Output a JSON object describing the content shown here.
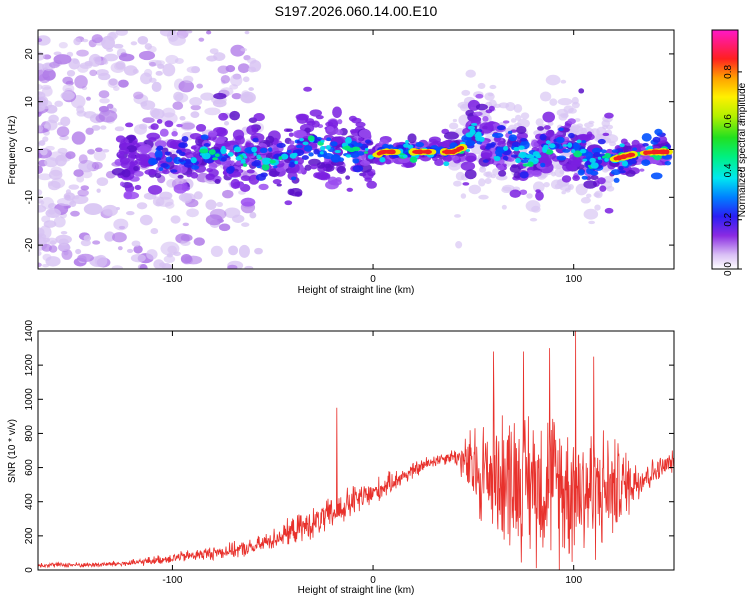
{
  "title": "S197.2026.060.14.00.E10",
  "chart_data": [
    {
      "type": "heatmap",
      "xlabel": "Height of straight line (km)",
      "ylabel": "Frequency (Hz)",
      "xlim": [
        -167,
        150
      ],
      "ylim": [
        -25,
        25
      ],
      "x_ticks": [
        -100,
        0,
        100
      ],
      "x_tick_labels": [
        "-100",
        "0",
        "100"
      ],
      "y_ticks": [
        -20,
        -10,
        0,
        10,
        20
      ],
      "y_tick_labels": [
        "-20",
        "-10",
        "0",
        "10",
        "20"
      ],
      "colorbar": {
        "label": "Normalized spectral amplitude",
        "range": [
          0,
          0.97
        ],
        "ticks": [
          0.0,
          0.2,
          0.4,
          0.6,
          0.8
        ],
        "tick_labels": [
          "0.0",
          "0.2",
          "0.4",
          "0.6",
          "0.8"
        ]
      },
      "ridge": {
        "x": [
          -160,
          -140,
          -120,
          -100,
          -90,
          -80,
          -70,
          -60,
          -50,
          -40,
          -35,
          -30,
          -25,
          -20,
          -10,
          -5,
          0,
          5,
          10,
          20,
          30,
          40,
          45,
          50,
          55,
          60,
          70,
          80,
          90,
          100,
          110,
          115,
          120,
          130,
          140,
          148
        ],
        "y": [
          -3,
          -2,
          -2,
          -1,
          -1.5,
          -1,
          -2,
          -1,
          -3,
          -2,
          1,
          2,
          -0.5,
          -0.5,
          0,
          -0.5,
          -1.5,
          -0.5,
          -0.5,
          -0.5,
          -0.5,
          -0.5,
          0.5,
          4,
          2,
          1,
          -1,
          -2,
          1,
          0,
          -3,
          -2,
          -2,
          -1,
          -0.5,
          -0.5
        ]
      },
      "strong_segments": [
        [
          2,
          12
        ],
        [
          20,
          30
        ],
        [
          35,
          45
        ],
        [
          120,
          130
        ],
        [
          135,
          148
        ]
      ]
    },
    {
      "type": "line",
      "xlabel": "Height of straight line (km)",
      "ylabel": "SNR (10 * v/v)",
      "xlim": [
        -167,
        150
      ],
      "ylim": [
        0,
        1400
      ],
      "x_ticks": [
        -100,
        0,
        100
      ],
      "x_tick_labels": [
        "-100",
        "0",
        "100"
      ],
      "y_ticks": [
        0,
        200,
        400,
        600,
        800,
        1000,
        1200,
        1400
      ],
      "y_tick_labels": [
        "0",
        "200",
        "400",
        "600",
        "800",
        "1000",
        "1200",
        "1400"
      ],
      "series": [
        {
          "name": "SNR",
          "color": "#e8312c",
          "envelope_x": [
            -167,
            -140,
            -120,
            -100,
            -80,
            -60,
            -50,
            -40,
            -30,
            -20,
            -10,
            0,
            10,
            20,
            30,
            40,
            45,
            50,
            60,
            70,
            80,
            90,
            100,
            110,
            120,
            130,
            140,
            150
          ],
          "envelope_mean": [
            30,
            30,
            40,
            70,
            100,
            130,
            180,
            230,
            270,
            330,
            400,
            450,
            520,
            580,
            640,
            670,
            640,
            580,
            560,
            540,
            520,
            500,
            480,
            470,
            480,
            520,
            570,
            640
          ],
          "envelope_spread": [
            15,
            15,
            20,
            30,
            40,
            50,
            60,
            80,
            90,
            100,
            100,
            80,
            60,
            50,
            40,
            40,
            120,
            280,
            380,
            420,
            450,
            450,
            430,
            400,
            300,
            150,
            80,
            60
          ],
          "spikes": [
            {
              "x": -18,
              "y": 950
            },
            {
              "x": 60,
              "y": 1280
            },
            {
              "x": 75,
              "y": 1280
            },
            {
              "x": 88,
              "y": 1300
            },
            {
              "x": 101,
              "y": 1400
            },
            {
              "x": 110,
              "y": 1250
            }
          ]
        }
      ]
    }
  ]
}
